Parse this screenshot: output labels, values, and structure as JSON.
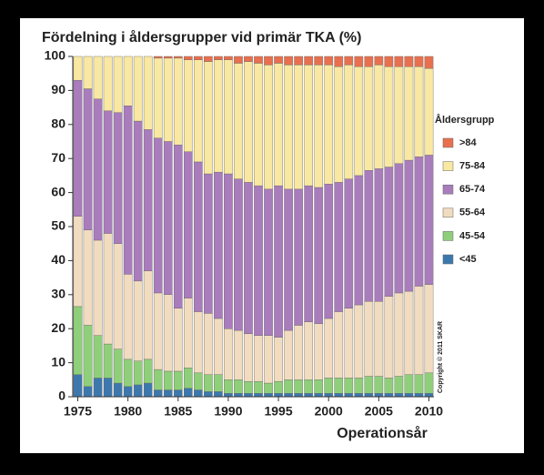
{
  "chart_data": {
    "type": "stacked-bar",
    "title": "Fördelning i åldersgrupper vid primär TKA (%)",
    "x_label": "Operationsår",
    "legend_title": "Åldersgrupp",
    "annotation": "Copyright © 2011 SKAR",
    "categories": [
      "1975",
      null,
      null,
      null,
      null,
      "1980",
      null,
      null,
      null,
      null,
      "1985",
      null,
      null,
      null,
      null,
      "1990",
      null,
      null,
      null,
      null,
      "1995",
      null,
      null,
      null,
      null,
      "2000",
      null,
      null,
      null,
      null,
      "2005",
      null,
      null,
      null,
      null,
      "2010"
    ],
    "ylim": [
      0,
      100
    ],
    "yticks": [
      0,
      10,
      20,
      30,
      40,
      50,
      60,
      70,
      80,
      90,
      100
    ],
    "legend": "right",
    "series": [
      {
        "name": "<45",
        "color": "#3d78ad",
        "values": [
          6.5,
          3,
          5.5,
          5.5,
          4,
          3,
          3.5,
          4,
          2,
          2,
          2,
          2.5,
          2,
          1.5,
          1.5,
          1,
          1,
          1,
          1,
          1,
          1,
          1,
          1,
          1,
          1,
          1,
          1,
          1,
          1,
          1,
          1,
          1,
          1,
          1,
          1,
          1
        ]
      },
      {
        "name": "45-54",
        "color": "#8fcf7a",
        "values": [
          20,
          18,
          12.5,
          10,
          10,
          8,
          7,
          7,
          6,
          5.5,
          5.5,
          6,
          5,
          5,
          5,
          4,
          4,
          3.5,
          3.5,
          3,
          3.5,
          4,
          4,
          4,
          4,
          4.5,
          4.5,
          4.5,
          4.5,
          5,
          5,
          4.5,
          5,
          5.5,
          5.5,
          6
        ]
      },
      {
        "name": "55-64",
        "color": "#f1dcbf",
        "values": [
          26.5,
          28,
          28,
          32.5,
          31,
          25,
          23.5,
          26,
          22.5,
          22.5,
          18.5,
          20.5,
          18,
          18,
          16.5,
          15,
          14.5,
          14,
          13.5,
          14,
          13,
          14.5,
          16,
          17,
          16.5,
          17.5,
          19.5,
          20.5,
          21.5,
          22,
          22,
          24,
          24.5,
          24.5,
          26,
          26
        ]
      },
      {
        "name": "65-74",
        "color": "#a97cbc",
        "values": [
          40,
          41.5,
          41.5,
          36,
          38.5,
          49.5,
          47,
          41.5,
          45.5,
          45,
          48,
          43,
          44,
          41,
          43,
          45.5,
          44.5,
          44.5,
          44,
          43,
          44.5,
          41.5,
          40,
          40,
          40,
          39.5,
          38,
          38,
          38,
          38.5,
          39,
          38,
          38,
          38.5,
          38,
          38
        ]
      },
      {
        "name": "75-84",
        "color": "#f9e8a2",
        "values": [
          7,
          9.5,
          12.5,
          16,
          16.5,
          14.5,
          19,
          21.5,
          23.5,
          24.5,
          25.5,
          27,
          30,
          33,
          33,
          33.5,
          34,
          35.5,
          36,
          36.5,
          36,
          36.5,
          36.5,
          35.5,
          36,
          35,
          34,
          33.5,
          32,
          30.5,
          30.5,
          29.5,
          28.5,
          27.5,
          26.5,
          25.5
        ]
      },
      {
        "name": ">84",
        "color": "#e8704f",
        "values": [
          0,
          0,
          0,
          0,
          0,
          0,
          0,
          0,
          0.5,
          0.5,
          0.5,
          1,
          1,
          1.5,
          1,
          1,
          2,
          1.5,
          2,
          2.5,
          2,
          2.5,
          2.5,
          2.5,
          2.5,
          2.5,
          3,
          2.5,
          3,
          3,
          2.5,
          3,
          3,
          3,
          3,
          3.5
        ]
      }
    ]
  }
}
